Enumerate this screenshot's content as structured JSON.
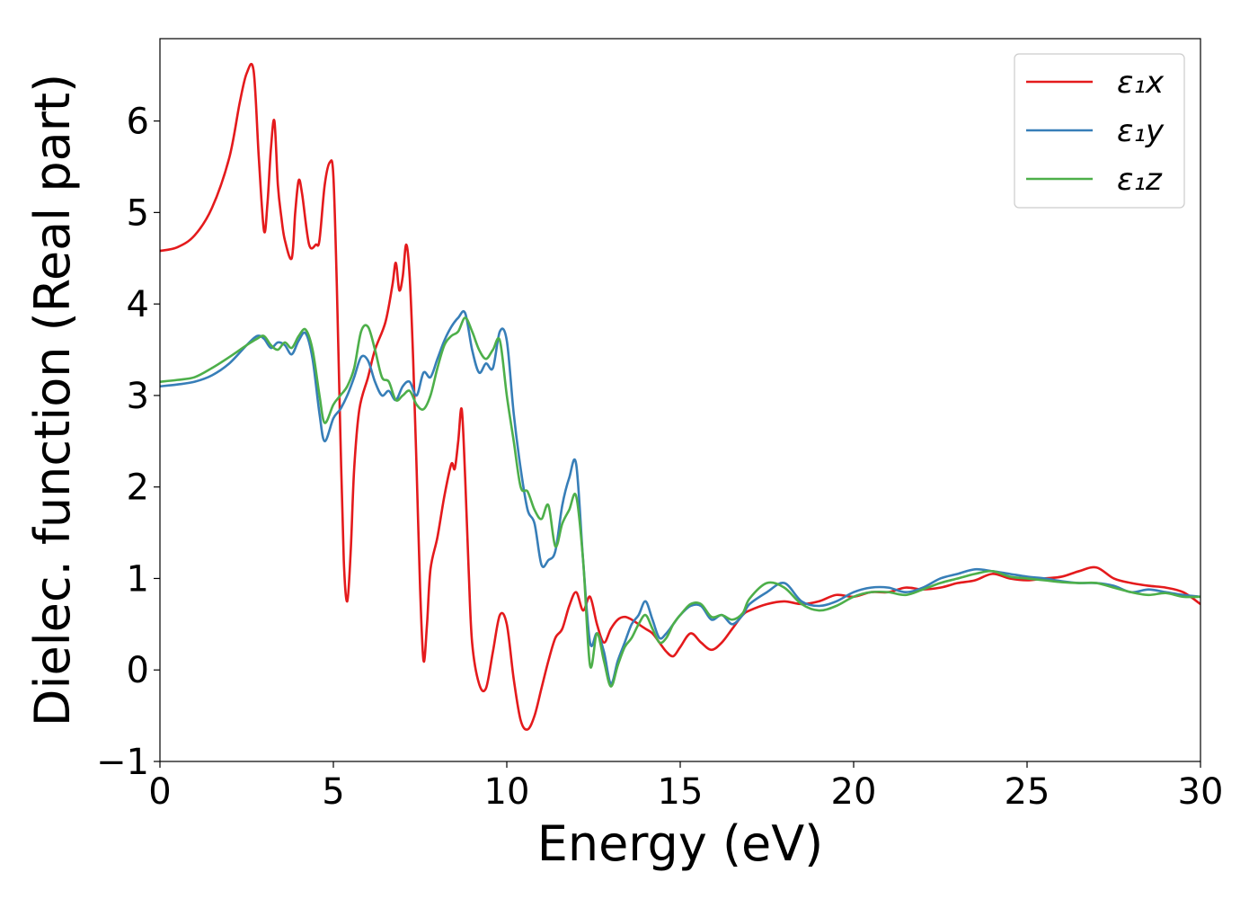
{
  "chart_data": {
    "type": "line",
    "title": "",
    "xlabel": "Energy (eV)",
    "ylabel": "Dielec. function (Real part)",
    "xlim": [
      0,
      30
    ],
    "ylim": [
      -1,
      6.9
    ],
    "xticks": [
      0,
      5,
      10,
      15,
      20,
      25,
      30
    ],
    "xtick_labels": [
      "0",
      "5",
      "10",
      "15",
      "20",
      "25",
      "30"
    ],
    "yticks": [
      -1,
      0,
      1,
      2,
      3,
      4,
      5,
      6
    ],
    "ytick_labels": [
      "−1",
      "0",
      "1",
      "2",
      "3",
      "4",
      "5",
      "6"
    ],
    "grid": false,
    "legend_position": "top-right",
    "series": [
      {
        "name": "ε₁x",
        "color": "#e41a1c",
        "x": [
          0,
          0.5,
          1,
          1.5,
          2,
          2.3,
          2.5,
          2.7,
          2.85,
          3,
          3.1,
          3.2,
          3.3,
          3.4,
          3.5,
          3.6,
          3.8,
          3.9,
          4.0,
          4.1,
          4.3,
          4.5,
          4.6,
          4.75,
          4.9,
          5.0,
          5.1,
          5.2,
          5.3,
          5.4,
          5.5,
          5.6,
          5.75,
          6.0,
          6.2,
          6.5,
          6.7,
          6.8,
          6.9,
          7.0,
          7.1,
          7.2,
          7.3,
          7.4,
          7.5,
          7.6,
          7.7,
          7.8,
          8.0,
          8.2,
          8.4,
          8.5,
          8.6,
          8.7,
          8.8,
          8.9,
          9.0,
          9.2,
          9.4,
          9.6,
          9.8,
          10.0,
          10.2,
          10.4,
          10.6,
          10.8,
          11.0,
          11.2,
          11.4,
          11.6,
          11.8,
          12.0,
          12.2,
          12.4,
          12.6,
          12.8,
          13.0,
          13.2,
          13.4,
          13.6,
          13.8,
          14.0,
          14.2,
          14.4,
          14.6,
          14.8,
          15.0,
          15.3,
          15.6,
          15.9,
          16.2,
          16.5,
          16.8,
          17.0,
          17.5,
          18.0,
          18.5,
          19.0,
          19.5,
          20.0,
          20.5,
          21.0,
          21.5,
          22.0,
          22.5,
          23.0,
          23.5,
          24.0,
          24.5,
          25.0,
          25.5,
          26.0,
          26.5,
          27.0,
          27.5,
          28.0,
          28.5,
          29.0,
          29.5,
          30.0
        ],
        "y": [
          4.58,
          4.62,
          4.75,
          5.05,
          5.6,
          6.2,
          6.52,
          6.55,
          5.6,
          4.8,
          5.1,
          5.7,
          6.0,
          5.3,
          4.95,
          4.7,
          4.5,
          5.0,
          5.35,
          5.2,
          4.65,
          4.65,
          4.7,
          5.3,
          5.55,
          5.4,
          4.2,
          2.6,
          1.2,
          0.75,
          1.3,
          2.2,
          2.85,
          3.2,
          3.5,
          3.8,
          4.2,
          4.45,
          4.15,
          4.3,
          4.65,
          4.3,
          3.4,
          2.2,
          0.9,
          0.1,
          0.5,
          1.1,
          1.45,
          1.9,
          2.25,
          2.2,
          2.5,
          2.85,
          2.1,
          1.1,
          0.3,
          -0.15,
          -0.2,
          0.2,
          0.6,
          0.5,
          -0.1,
          -0.55,
          -0.65,
          -0.5,
          -0.2,
          0.1,
          0.35,
          0.45,
          0.7,
          0.85,
          0.65,
          0.8,
          0.5,
          0.3,
          0.45,
          0.55,
          0.58,
          0.55,
          0.5,
          0.45,
          0.4,
          0.3,
          0.2,
          0.15,
          0.25,
          0.4,
          0.3,
          0.22,
          0.3,
          0.45,
          0.6,
          0.65,
          0.72,
          0.75,
          0.72,
          0.75,
          0.82,
          0.8,
          0.85,
          0.85,
          0.9,
          0.88,
          0.9,
          0.95,
          0.98,
          1.05,
          1.0,
          0.98,
          1.0,
          1.02,
          1.08,
          1.12,
          1.0,
          0.95,
          0.92,
          0.9,
          0.85,
          0.72
        ]
      },
      {
        "name": "ε₁y",
        "color": "#377eb8",
        "x": [
          0,
          0.5,
          1,
          1.5,
          2,
          2.5,
          2.8,
          3.0,
          3.2,
          3.4,
          3.6,
          3.8,
          4.0,
          4.2,
          4.4,
          4.6,
          4.75,
          5.0,
          5.2,
          5.4,
          5.6,
          5.8,
          6.0,
          6.2,
          6.4,
          6.6,
          6.8,
          7.0,
          7.2,
          7.4,
          7.6,
          7.8,
          8.0,
          8.2,
          8.4,
          8.6,
          8.8,
          9.0,
          9.2,
          9.4,
          9.6,
          9.8,
          10.0,
          10.2,
          10.4,
          10.6,
          10.8,
          11.0,
          11.2,
          11.4,
          11.6,
          11.8,
          12.0,
          12.2,
          12.4,
          12.6,
          12.8,
          13.0,
          13.2,
          13.4,
          13.6,
          13.8,
          14.0,
          14.2,
          14.4,
          14.6,
          14.8,
          15.0,
          15.3,
          15.6,
          15.9,
          16.2,
          16.5,
          16.8,
          17.0,
          17.5,
          18.0,
          18.5,
          19.0,
          19.5,
          20.0,
          20.5,
          21.0,
          21.5,
          22.0,
          22.5,
          23.0,
          23.5,
          24.0,
          24.5,
          25.0,
          25.5,
          26.0,
          26.5,
          27.0,
          27.5,
          28.0,
          28.5,
          29.0,
          29.5,
          30.0
        ],
        "y": [
          3.1,
          3.12,
          3.15,
          3.22,
          3.35,
          3.55,
          3.65,
          3.62,
          3.52,
          3.58,
          3.55,
          3.45,
          3.6,
          3.68,
          3.4,
          2.8,
          2.5,
          2.75,
          2.85,
          3.0,
          3.2,
          3.42,
          3.38,
          3.15,
          3.0,
          3.05,
          2.95,
          3.1,
          3.15,
          3.0,
          3.25,
          3.2,
          3.4,
          3.6,
          3.75,
          3.85,
          3.9,
          3.5,
          3.25,
          3.35,
          3.3,
          3.7,
          3.6,
          2.8,
          2.2,
          1.75,
          1.6,
          1.15,
          1.2,
          1.3,
          1.8,
          2.1,
          2.25,
          1.2,
          0.3,
          0.4,
          0.2,
          -0.15,
          0.1,
          0.3,
          0.5,
          0.6,
          0.75,
          0.55,
          0.35,
          0.4,
          0.5,
          0.6,
          0.7,
          0.7,
          0.55,
          0.6,
          0.5,
          0.6,
          0.72,
          0.85,
          0.95,
          0.75,
          0.7,
          0.75,
          0.85,
          0.9,
          0.9,
          0.85,
          0.9,
          1.0,
          1.05,
          1.1,
          1.08,
          1.05,
          1.02,
          1.0,
          0.97,
          0.95,
          0.95,
          0.92,
          0.85,
          0.88,
          0.85,
          0.82,
          0.8
        ]
      },
      {
        "name": "ε₁z",
        "color": "#4daf4a",
        "x": [
          0,
          0.5,
          1,
          1.5,
          2,
          2.5,
          2.8,
          3.0,
          3.2,
          3.4,
          3.6,
          3.8,
          4.0,
          4.2,
          4.4,
          4.6,
          4.75,
          5.0,
          5.2,
          5.4,
          5.6,
          5.8,
          6.0,
          6.2,
          6.4,
          6.6,
          6.8,
          7.0,
          7.2,
          7.4,
          7.6,
          7.8,
          8.0,
          8.2,
          8.4,
          8.6,
          8.8,
          9.0,
          9.2,
          9.4,
          9.6,
          9.8,
          10.0,
          10.2,
          10.4,
          10.6,
          10.8,
          11.0,
          11.2,
          11.4,
          11.6,
          11.8,
          12.0,
          12.2,
          12.4,
          12.6,
          12.8,
          13.0,
          13.2,
          13.4,
          13.6,
          13.8,
          14.0,
          14.2,
          14.4,
          14.6,
          14.8,
          15.0,
          15.3,
          15.6,
          15.9,
          16.2,
          16.5,
          16.8,
          17.0,
          17.5,
          18.0,
          18.5,
          19.0,
          19.5,
          20.0,
          20.5,
          21.0,
          21.5,
          22.0,
          22.5,
          23.0,
          23.5,
          24.0,
          24.5,
          25.0,
          25.5,
          26.0,
          26.5,
          27.0,
          27.5,
          28.0,
          28.5,
          29.0,
          29.5,
          30.0
        ],
        "y": [
          3.15,
          3.17,
          3.2,
          3.3,
          3.42,
          3.55,
          3.62,
          3.65,
          3.55,
          3.5,
          3.58,
          3.52,
          3.65,
          3.72,
          3.5,
          3.0,
          2.7,
          2.9,
          3.0,
          3.1,
          3.3,
          3.7,
          3.75,
          3.5,
          3.2,
          3.15,
          2.95,
          3.0,
          3.05,
          2.9,
          2.85,
          3.0,
          3.3,
          3.55,
          3.65,
          3.7,
          3.85,
          3.7,
          3.5,
          3.4,
          3.5,
          3.6,
          3.0,
          2.5,
          2.0,
          1.95,
          1.75,
          1.65,
          1.8,
          1.35,
          1.6,
          1.75,
          1.9,
          1.2,
          0.05,
          0.4,
          0.1,
          -0.18,
          0.05,
          0.25,
          0.35,
          0.5,
          0.6,
          0.45,
          0.3,
          0.35,
          0.5,
          0.6,
          0.72,
          0.72,
          0.58,
          0.6,
          0.55,
          0.62,
          0.78,
          0.95,
          0.9,
          0.72,
          0.65,
          0.7,
          0.8,
          0.85,
          0.85,
          0.82,
          0.88,
          0.95,
          1.0,
          1.05,
          1.08,
          1.02,
          1.0,
          0.98,
          0.96,
          0.95,
          0.95,
          0.9,
          0.85,
          0.82,
          0.84,
          0.8,
          0.8
        ]
      }
    ]
  }
}
